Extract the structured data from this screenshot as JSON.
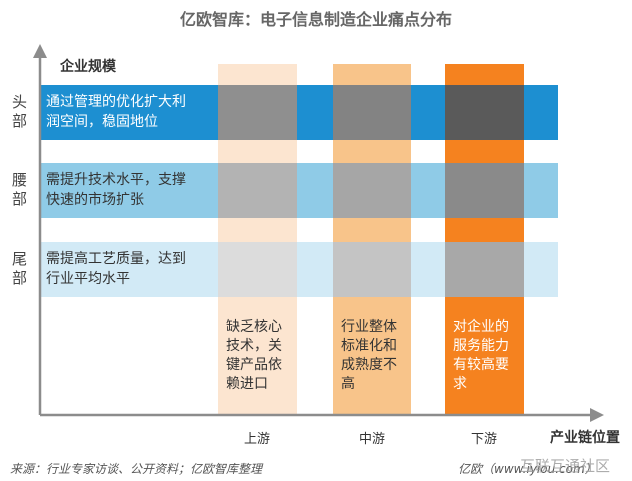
{
  "title": "亿欧智库：电子信息制造企业痛点分布",
  "y_axis_label": "企业规模",
  "x_axis_label": "产业链位置",
  "rows": [
    {
      "label": "头部",
      "lines": [
        "通过管理的优化扩大利",
        "润空间，稳固地位"
      ]
    },
    {
      "label": "腰部",
      "lines": [
        "需提升技术水平，支撑",
        "快速的市场扩张"
      ]
    },
    {
      "label": "尾部",
      "lines": [
        "需提高工艺质量，达到",
        "行业平均水平"
      ]
    }
  ],
  "columns": [
    {
      "label": "上游",
      "lines": [
        "缺乏核心",
        "技术，关",
        "键产品依",
        "赖进口"
      ]
    },
    {
      "label": "中游",
      "lines": [
        "行业整体",
        "标准化和",
        "成熟度不",
        "高"
      ]
    },
    {
      "label": "下游",
      "lines": [
        "对企业的",
        "服务能力",
        "有较高要",
        "求"
      ]
    }
  ],
  "source": "来源：行业专家访谈、公开资料；亿欧智库整理",
  "credit": "亿欧（www.iyiou.com）",
  "watermark": "互联互通社区"
}
